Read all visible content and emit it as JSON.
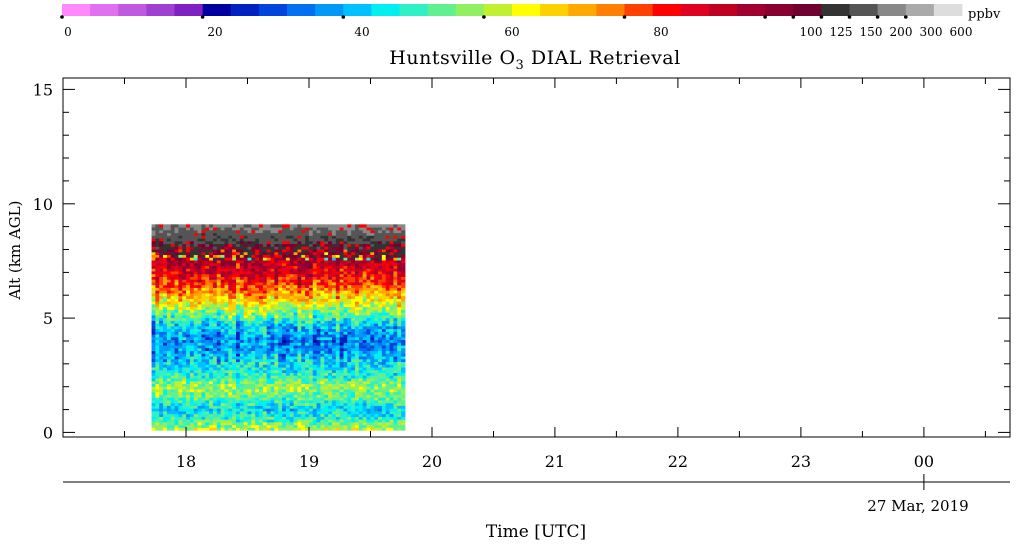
{
  "colorbar": {
    "unit": "ppbv",
    "tick_labels": [
      "0",
      "20",
      "40",
      "60",
      "80",
      "100",
      "125",
      "150",
      "200",
      "300",
      "600"
    ],
    "colors": [
      "#ff88ff",
      "#e070f0",
      "#c058e0",
      "#a040d0",
      "#8020c0",
      "#0000a0",
      "#0022c0",
      "#0044dd",
      "#0070f0",
      "#0099f8",
      "#00c0ff",
      "#00f0f0",
      "#30f0c8",
      "#60f090",
      "#90f060",
      "#c0f030",
      "#ffff00",
      "#ffd000",
      "#ffa800",
      "#ff8000",
      "#ff4000",
      "#ff0000",
      "#e00020",
      "#c00020",
      "#a00030",
      "#880030",
      "#700030",
      "#333333",
      "#555555",
      "#888888",
      "#aaaaaa",
      "#dddddd"
    ]
  },
  "title_main": "Huntsville O",
  "title_sub": "3",
  "title_rest": " DIAL Retrieval",
  "footer_date": "27 Mar, 2019",
  "chart_data": {
    "type": "heatmap",
    "title": "Huntsville O3 DIAL Retrieval",
    "xlabel": "Time [UTC]",
    "ylabel": "Alt (km AGL)",
    "x_tick_labels": [
      "18",
      "19",
      "20",
      "21",
      "22",
      "23",
      "00"
    ],
    "x_tick_hours": [
      18,
      19,
      20,
      21,
      22,
      23,
      24
    ],
    "xlim_hours": [
      17.0,
      24.7
    ],
    "y_ticks": [
      0,
      5,
      10,
      15
    ],
    "ylim": [
      -0.2,
      15.5
    ],
    "data_extent": {
      "time_start_hours": 17.72,
      "time_end_hours": 19.78,
      "alt_min_km": 0.1,
      "alt_max_km": 9.1
    },
    "altitude_profile_ppbv": [
      {
        "alt_km": 0.2,
        "ppbv": 60
      },
      {
        "alt_km": 0.6,
        "ppbv": 50
      },
      {
        "alt_km": 1.0,
        "ppbv": 44
      },
      {
        "alt_km": 1.5,
        "ppbv": 53
      },
      {
        "alt_km": 2.0,
        "ppbv": 58
      },
      {
        "alt_km": 2.5,
        "ppbv": 50
      },
      {
        "alt_km": 3.0,
        "ppbv": 45
      },
      {
        "alt_km": 3.5,
        "ppbv": 39
      },
      {
        "alt_km": 4.0,
        "ppbv": 36
      },
      {
        "alt_km": 4.5,
        "ppbv": 40
      },
      {
        "alt_km": 5.0,
        "ppbv": 49
      },
      {
        "alt_km": 5.5,
        "ppbv": 62
      },
      {
        "alt_km": 6.0,
        "ppbv": 72
      },
      {
        "alt_km": 6.5,
        "ppbv": 82
      },
      {
        "alt_km": 7.0,
        "ppbv": 90
      },
      {
        "alt_km": 7.5,
        "ppbv": 95
      },
      {
        "alt_km": 8.0,
        "ppbv": 140
      },
      {
        "alt_km": 8.5,
        "ppbv": 220
      },
      {
        "alt_km": 9.0,
        "ppbv": 320
      }
    ],
    "legend": "colorbar-top"
  }
}
